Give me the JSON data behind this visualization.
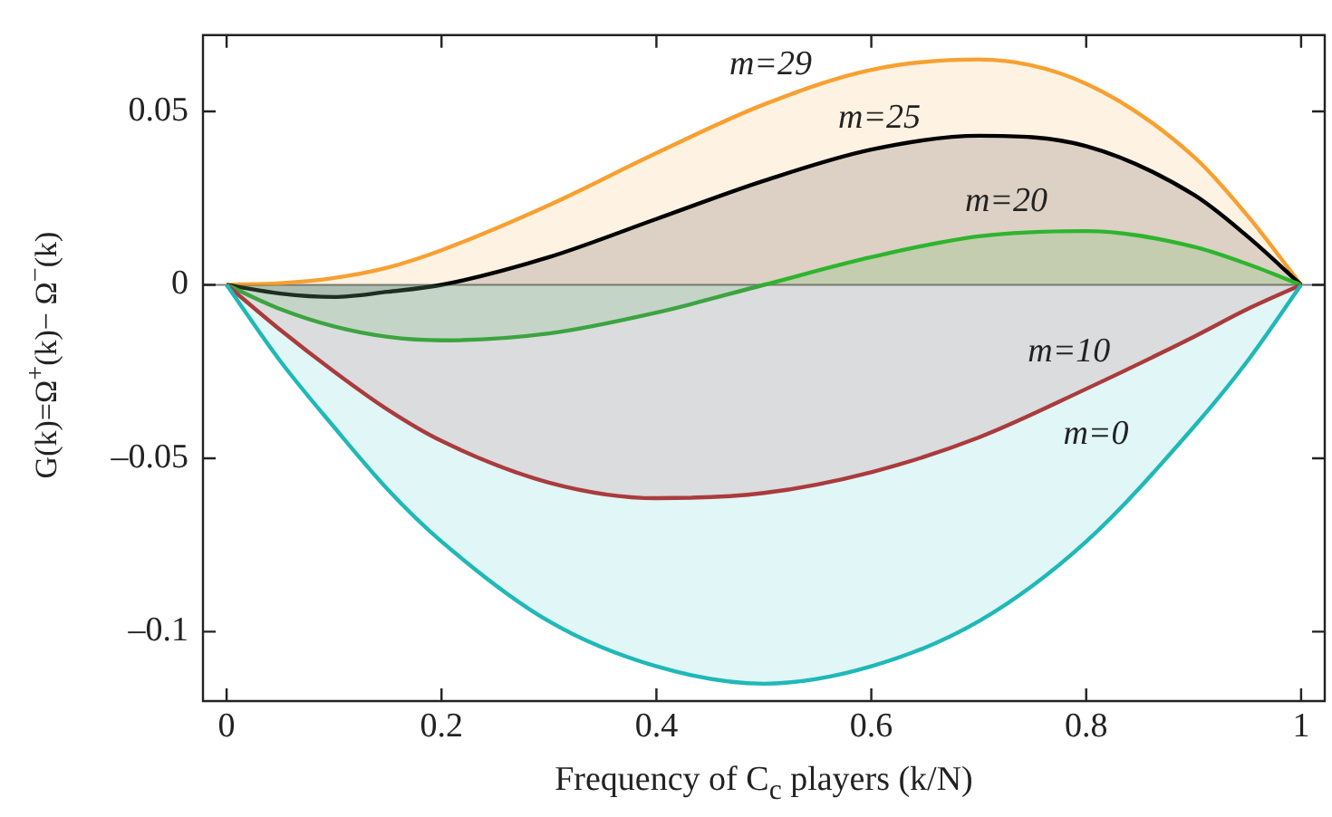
{
  "chart_data": {
    "type": "area",
    "xlabel": "Frequency of C$_{c}$ players (k/N)",
    "ylabel": "G(k)=Ω$^{+}$(k)− Ω$^{−}$(k)",
    "x": [
      0,
      0.05,
      0.1,
      0.15,
      0.2,
      0.3,
      0.4,
      0.5,
      0.6,
      0.7,
      0.8,
      0.9,
      0.95,
      1
    ],
    "series": [
      {
        "name": "m=0",
        "color": "#20b8b8",
        "values": [
          0,
          -0.022,
          -0.041,
          -0.059,
          -0.074,
          -0.097,
          -0.11,
          -0.115,
          -0.11,
          -0.097,
          -0.074,
          -0.041,
          -0.022,
          0
        ]
      },
      {
        "name": "m=10",
        "color": "#c0282a",
        "values": [
          0,
          -0.013,
          -0.025,
          -0.036,
          -0.045,
          -0.057,
          -0.0615,
          -0.06,
          -0.054,
          -0.044,
          -0.03,
          -0.015,
          -0.007,
          0
        ]
      },
      {
        "name": "m=20",
        "color": "#2db52d",
        "values": [
          0,
          -0.007,
          -0.012,
          -0.015,
          -0.016,
          -0.014,
          -0.008,
          0,
          0.008,
          0.014,
          0.0155,
          0.011,
          0.006,
          0
        ]
      },
      {
        "name": "m=25",
        "color": "#000000",
        "values": [
          0,
          -0.0025,
          -0.0035,
          -0.002,
          0,
          0.008,
          0.019,
          0.03,
          0.039,
          0.043,
          0.04,
          0.026,
          0.014,
          0
        ]
      },
      {
        "name": "m=29",
        "color": "#f7a030",
        "values": [
          0,
          0.0005,
          0.002,
          0.005,
          0.01,
          0.023,
          0.038,
          0.052,
          0.062,
          0.065,
          0.058,
          0.037,
          0.02,
          0
        ]
      }
    ],
    "ref_lines": [
      {
        "axis": "y",
        "value": 0,
        "color": "#808080"
      }
    ],
    "xlim": [
      -0.022,
      1.022
    ],
    "ylim": [
      -0.12,
      0.072
    ],
    "xticks": [
      0,
      0.2,
      0.4,
      0.6,
      0.8,
      1
    ],
    "yticks": [
      {
        "value": -0.1,
        "label": "–0.1"
      },
      {
        "value": -0.05,
        "label": "–0.05"
      },
      0,
      0.05
    ],
    "grid": false,
    "legend": false
  }
}
